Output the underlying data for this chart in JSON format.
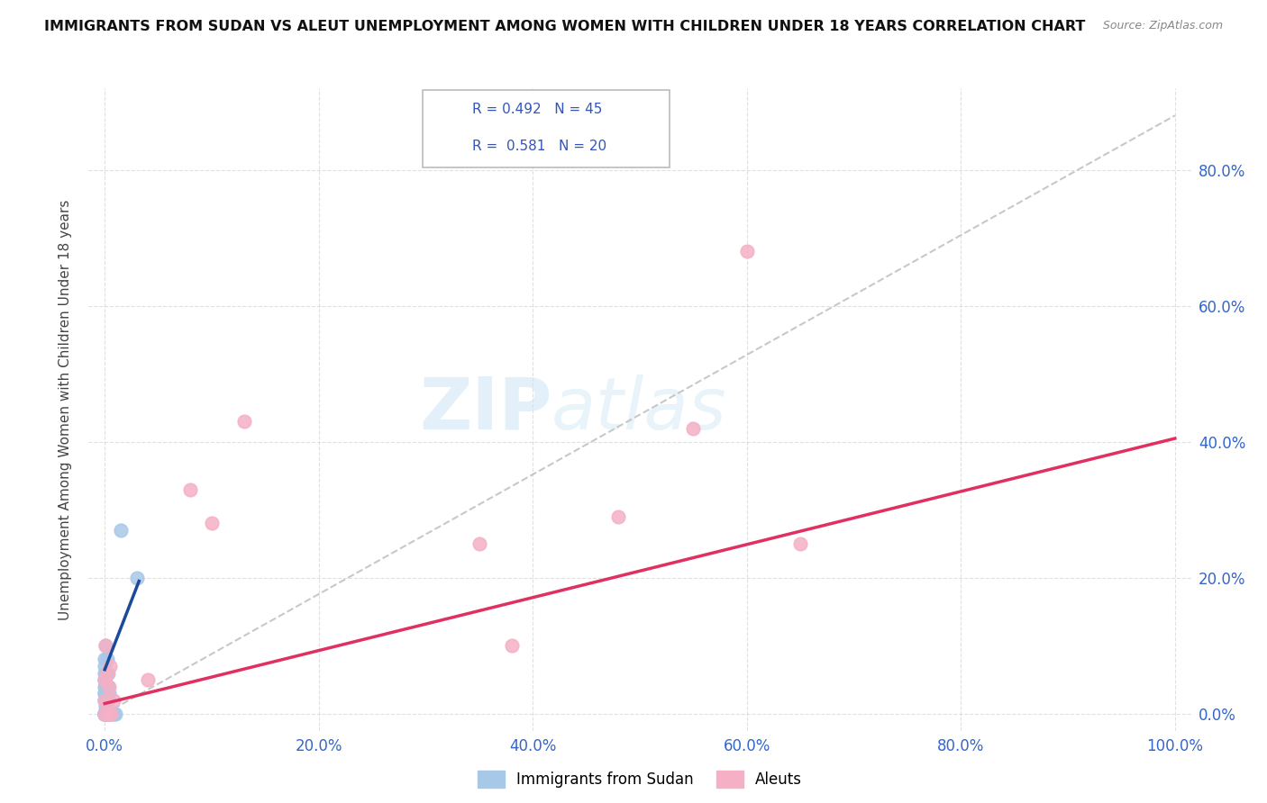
{
  "title": "IMMIGRANTS FROM SUDAN VS ALEUT UNEMPLOYMENT AMONG WOMEN WITH CHILDREN UNDER 18 YEARS CORRELATION CHART",
  "source": "Source: ZipAtlas.com",
  "ylabel": "Unemployment Among Women with Children Under 18 years",
  "r_sudan": 0.492,
  "n_sudan": 45,
  "r_aleut": 0.581,
  "n_aleut": 20,
  "color_sudan": "#a8c8e8",
  "color_aleut": "#f5b0c5",
  "line_color_sudan": "#1a4a99",
  "line_color_aleut": "#e03060",
  "legend_label_sudan": "Immigrants from Sudan",
  "legend_label_aleut": "Aleuts",
  "background_color": "#ffffff",
  "grid_color": "#cccccc",
  "sudan_x": [
    0.0,
    0.0,
    0.0,
    0.0,
    0.0,
    0.0,
    0.0,
    0.0,
    0.0,
    0.0,
    0.0,
    0.0,
    0.0,
    0.0,
    0.0,
    0.0,
    0.0,
    0.0,
    0.0,
    0.0,
    0.0,
    0.0,
    0.0,
    0.001,
    0.001,
    0.001,
    0.001,
    0.001,
    0.001,
    0.002,
    0.002,
    0.002,
    0.002,
    0.003,
    0.003,
    0.003,
    0.003,
    0.004,
    0.004,
    0.005,
    0.006,
    0.008,
    0.01,
    0.015,
    0.03
  ],
  "sudan_y": [
    0.0,
    0.0,
    0.0,
    0.0,
    0.0,
    0.0,
    0.0,
    0.0,
    0.0,
    0.0,
    0.02,
    0.02,
    0.03,
    0.03,
    0.04,
    0.05,
    0.05,
    0.06,
    0.07,
    0.08,
    0.0,
    0.0,
    0.0,
    0.0,
    0.01,
    0.02,
    0.04,
    0.06,
    0.1,
    0.0,
    0.02,
    0.04,
    0.08,
    0.0,
    0.02,
    0.04,
    0.06,
    0.0,
    0.03,
    0.0,
    0.0,
    0.0,
    0.0,
    0.27,
    0.2
  ],
  "aleut_x": [
    0.0,
    0.0,
    0.0,
    0.001,
    0.002,
    0.003,
    0.004,
    0.005,
    0.006,
    0.008,
    0.04,
    0.08,
    0.1,
    0.13,
    0.35,
    0.38,
    0.48,
    0.55,
    0.6,
    0.65
  ],
  "aleut_y": [
    0.0,
    0.02,
    0.05,
    0.1,
    0.06,
    0.0,
    0.04,
    0.07,
    0.0,
    0.02,
    0.05,
    0.33,
    0.28,
    0.43,
    0.25,
    0.1,
    0.29,
    0.42,
    0.68,
    0.25
  ],
  "sudan_line_x0": 0.0,
  "sudan_line_x1": 0.032,
  "sudan_line_y0": 0.065,
  "sudan_line_y1": 0.195,
  "aleut_line_x0": 0.0,
  "aleut_line_x1": 1.0,
  "aleut_line_y0": 0.015,
  "aleut_line_y1": 0.405,
  "ref_line_x0": 0.0,
  "ref_line_x1": 1.0,
  "ref_line_y0": 0.0,
  "ref_line_y1": 0.88,
  "xlim_min": -0.015,
  "xlim_max": 1.015,
  "ylim_min": -0.025,
  "ylim_max": 0.92,
  "xticks": [
    0.0,
    0.2,
    0.4,
    0.6,
    0.8,
    1.0
  ],
  "xticklabels": [
    "0.0%",
    "20.0%",
    "40.0%",
    "60.0%",
    "80.0%",
    "100.0%"
  ],
  "yticks": [
    0.0,
    0.2,
    0.4,
    0.6,
    0.8
  ],
  "yticklabels": [
    "0.0%",
    "20.0%",
    "40.0%",
    "60.0%",
    "80.0%"
  ]
}
